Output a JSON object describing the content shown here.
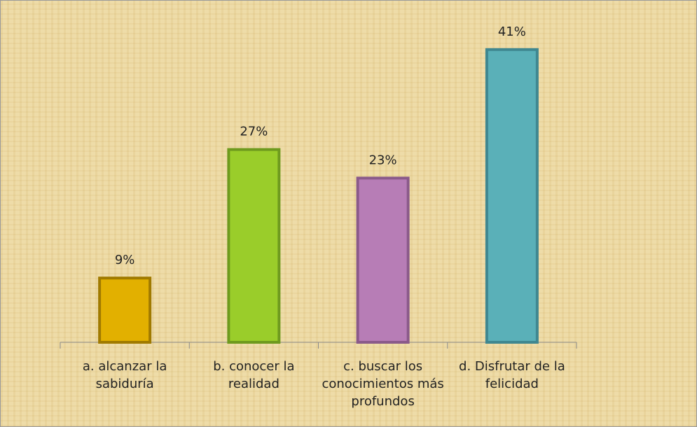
{
  "chart_data": {
    "type": "bar",
    "categories": [
      "a. alcanzar la sabiduría",
      "b. conocer la realidad",
      "c. buscar los conocimientos más profundos",
      "d. Disfrutar de la felicidad"
    ],
    "values": [
      9,
      27,
      23,
      41
    ],
    "value_labels": [
      "9%",
      "27%",
      "23%",
      "41%"
    ],
    "colors": [
      "#e2b000",
      "#9acd2a",
      "#b77db6",
      "#5ab0b8"
    ],
    "border_colors": [
      "#a07a00",
      "#6e9a1e",
      "#8a5a8a",
      "#3f8790"
    ]
  }
}
